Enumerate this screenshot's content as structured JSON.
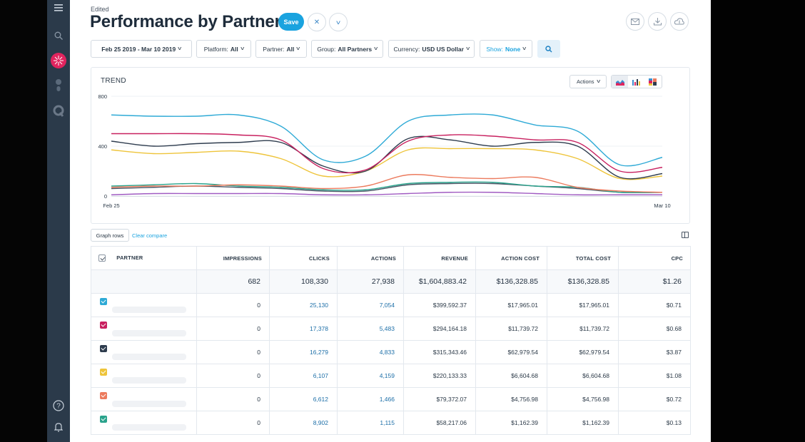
{
  "header": {
    "edited_label": "Edited",
    "title": "Performance by Partner",
    "save_label": "Save"
  },
  "filters": [
    {
      "name": "date-range-filter",
      "label": "Feb 25 2019 - Mar 10 2019",
      "value": ""
    },
    {
      "name": "platform-filter",
      "label": "Platform:",
      "value": "All"
    },
    {
      "name": "partner-filter",
      "label": "Partner:",
      "value": "All"
    },
    {
      "name": "group-filter",
      "label": "Group:",
      "value": "All Partners"
    },
    {
      "name": "currency-filter",
      "label": "Currency:",
      "value": "USD US Dollar"
    },
    {
      "name": "show-filter",
      "label": "Show:",
      "value": "None"
    }
  ],
  "chart": {
    "title": "TREND",
    "actions_label": "Actions",
    "graph_rows_label": "Graph rows",
    "clear_compare_label": "Clear compare"
  },
  "chart_data": {
    "type": "line",
    "title": "TREND",
    "x": [
      "Feb 25",
      "Feb 26",
      "Feb 27",
      "Feb 28",
      "Mar 1",
      "Mar 2",
      "Mar 3",
      "Mar 4",
      "Mar 5",
      "Mar 6",
      "Mar 7",
      "Mar 8",
      "Mar 9",
      "Mar 10"
    ],
    "xticks": [
      "Feb 25",
      "Mar 10"
    ],
    "yticks": [
      0,
      400,
      800
    ],
    "ylim": [
      0,
      800
    ],
    "grid": true,
    "series": [
      {
        "color": "#2eaad6",
        "values": [
          650,
          640,
          640,
          650,
          560,
          290,
          320,
          600,
          650,
          650,
          570,
          520,
          250,
          310
        ]
      },
      {
        "color": "#c8205f",
        "values": [
          500,
          500,
          500,
          490,
          450,
          220,
          210,
          440,
          490,
          480,
          450,
          430,
          200,
          230
        ]
      },
      {
        "color": "#2e3c4e",
        "values": [
          440,
          400,
          420,
          430,
          430,
          240,
          200,
          460,
          450,
          400,
          430,
          400,
          150,
          180
        ]
      },
      {
        "color": "#eec43a",
        "values": [
          370,
          340,
          350,
          360,
          300,
          160,
          200,
          370,
          380,
          380,
          370,
          300,
          140,
          160
        ]
      },
      {
        "color": "#ec7b5e",
        "values": [
          70,
          80,
          80,
          90,
          80,
          60,
          80,
          170,
          150,
          140,
          150,
          70,
          40,
          30
        ]
      },
      {
        "color": "#2aa38c",
        "values": [
          80,
          90,
          100,
          80,
          70,
          50,
          50,
          100,
          110,
          110,
          80,
          70,
          30,
          30
        ]
      },
      {
        "color": "#4a5666",
        "values": [
          60,
          70,
          80,
          70,
          60,
          40,
          40,
          90,
          100,
          100,
          80,
          60,
          30,
          30
        ]
      },
      {
        "color": "#a05bc2",
        "values": [
          10,
          20,
          20,
          20,
          20,
          10,
          10,
          20,
          30,
          30,
          20,
          10,
          10,
          10
        ]
      }
    ]
  },
  "table": {
    "headers": [
      "PARTNER",
      "IMPRESSIONS",
      "CLICKS",
      "ACTIONS",
      "REVENUE",
      "ACTION COST",
      "TOTAL COST",
      "CPC"
    ],
    "totals": [
      "682",
      "108,330",
      "27,938",
      "$1,604,883.42",
      "$136,328.85",
      "$136,328.85",
      "$1.26"
    ],
    "rows": [
      {
        "color": "#2eaad6",
        "values": [
          "0",
          "25,130",
          "7,054",
          "$399,592.37",
          "$17,965.01",
          "$17,965.01",
          "$0.71"
        ]
      },
      {
        "color": "#c8205f",
        "values": [
          "0",
          "17,378",
          "5,483",
          "$294,164.18",
          "$11,739.72",
          "$11,739.72",
          "$0.68"
        ]
      },
      {
        "color": "#2e3c4e",
        "values": [
          "0",
          "16,279",
          "4,833",
          "$315,343.46",
          "$62,979.54",
          "$62,979.54",
          "$3.87"
        ]
      },
      {
        "color": "#eec43a",
        "values": [
          "0",
          "6,107",
          "4,159",
          "$220,133.33",
          "$6,604.68",
          "$6,604.68",
          "$1.08"
        ]
      },
      {
        "color": "#ec7b5e",
        "values": [
          "0",
          "6,612",
          "1,466",
          "$79,372.07",
          "$4,756.98",
          "$4,756.98",
          "$0.72"
        ]
      },
      {
        "color": "#2aa38c",
        "values": [
          "0",
          "8,902",
          "1,115",
          "$58,217.06",
          "$1,162.39",
          "$1,162.39",
          "$0.13"
        ]
      }
    ]
  },
  "colors": {
    "accent": "#1aa3df",
    "sidebar": "#2b3a4a",
    "link": "#1d6fa8"
  }
}
